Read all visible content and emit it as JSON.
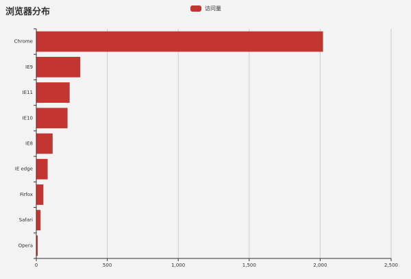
{
  "chart_data": {
    "type": "bar",
    "orientation": "horizontal",
    "title": "浏览器分布",
    "legend": {
      "label": "访问量",
      "placement": "top-center"
    },
    "categories": [
      "Chrome",
      "IE9",
      "IE11",
      "IE10",
      "IE8",
      "IE edge",
      "Firfox",
      "Safari",
      "Opera"
    ],
    "series": [
      {
        "name": "访问量",
        "values": [
          2020,
          310,
          235,
          220,
          115,
          80,
          50,
          30,
          10
        ]
      }
    ],
    "xlim": [
      0,
      2500
    ],
    "xticks": [
      0,
      500,
      1000,
      1500,
      2000,
      2500
    ],
    "xtick_labels": [
      "0",
      "500",
      "1,000",
      "1,500",
      "2,000",
      "2,500"
    ],
    "grid": "vertical",
    "colors": {
      "bar": "#c23531",
      "axis": "#333333",
      "grid": "#cccccc"
    }
  }
}
